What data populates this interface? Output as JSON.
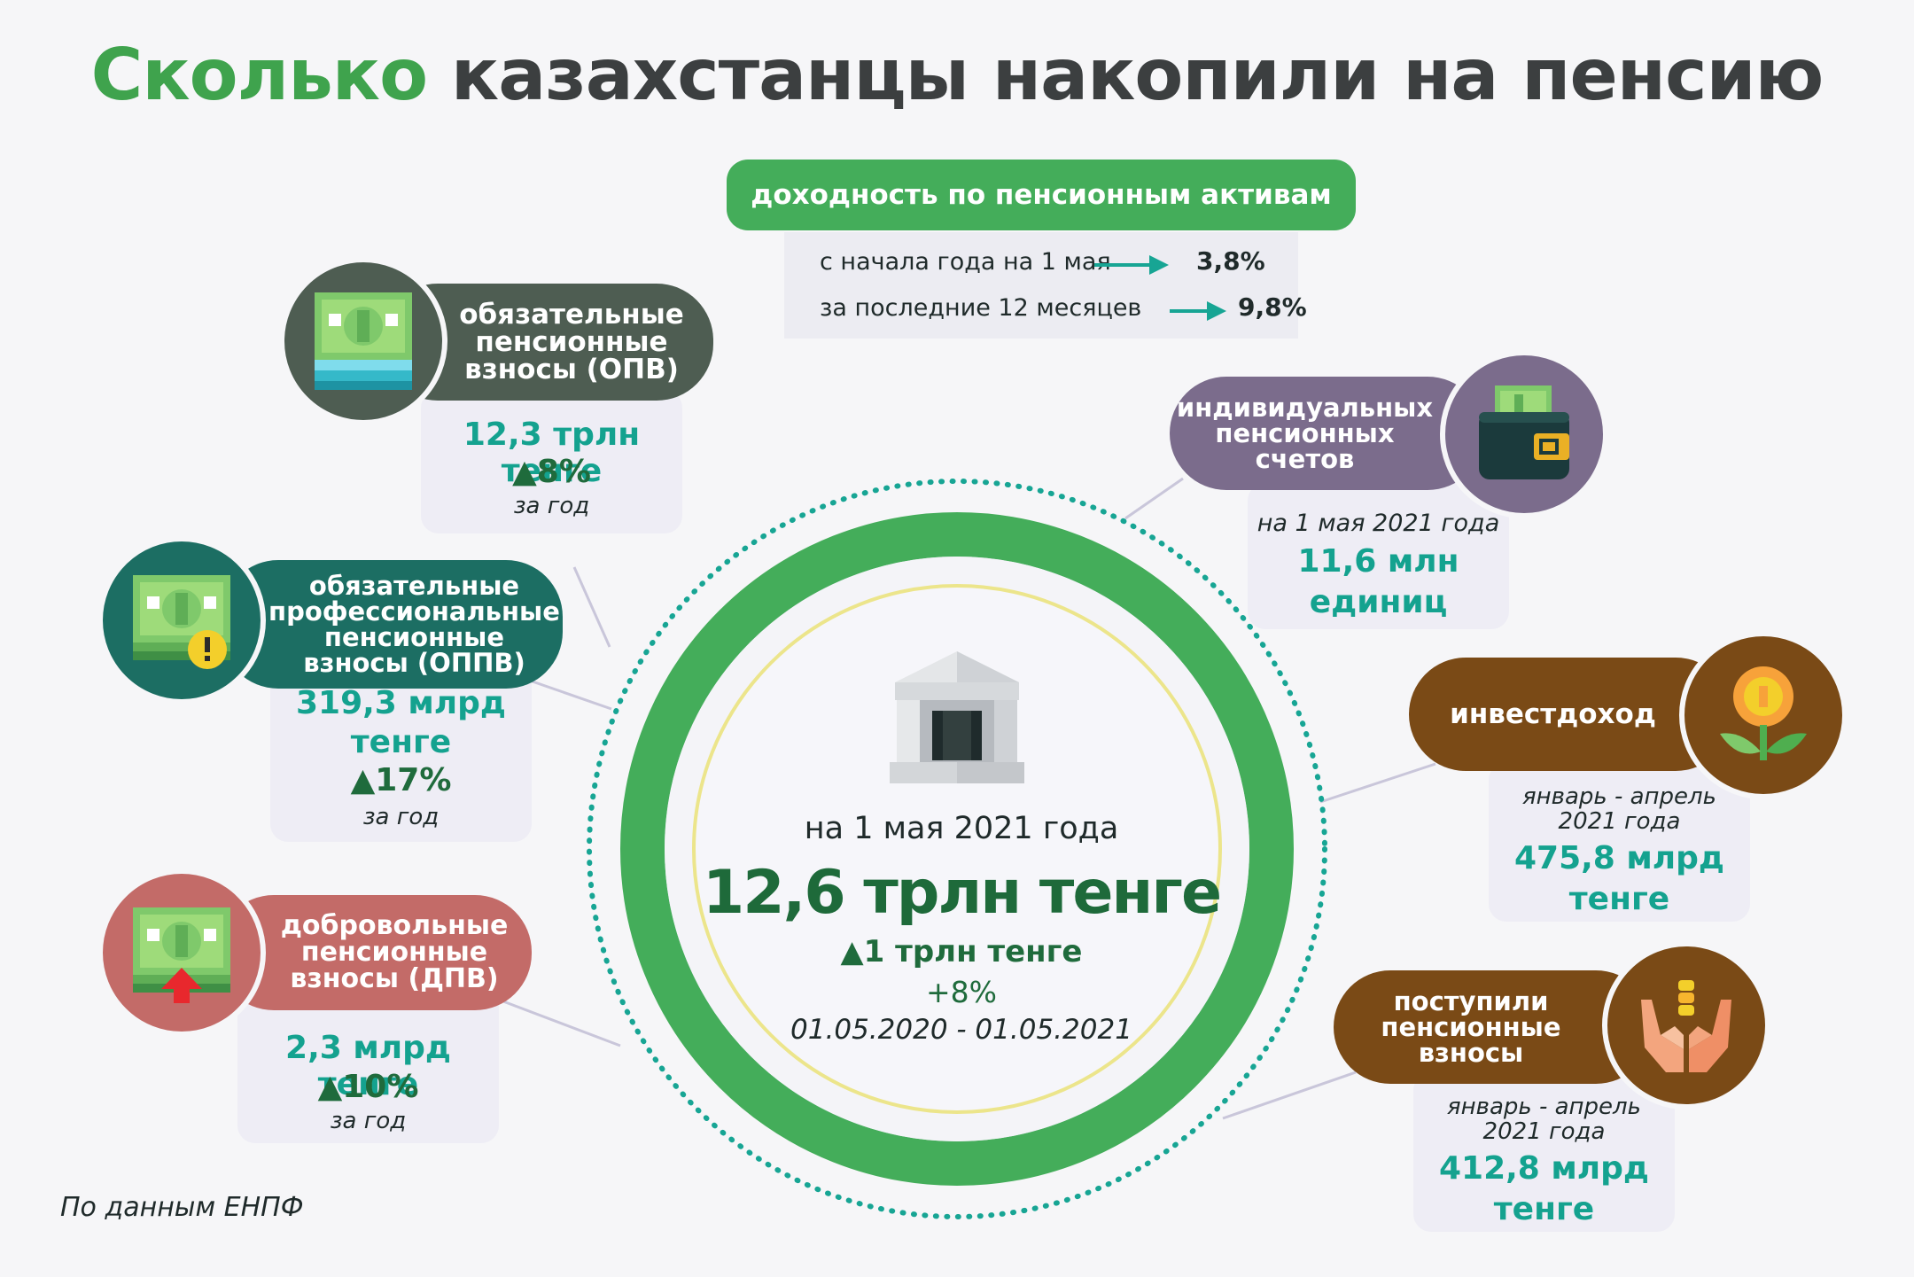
{
  "title": {
    "accent": "Сколько",
    "rest": "казахстанцы накопили на пенсию"
  },
  "yield": {
    "header": "доходность по пенсионным активам",
    "rows": [
      {
        "label": "с начала года на 1 мая",
        "value": "3,8%"
      },
      {
        "label": "за последние 12 месяцев",
        "value": "9,8%"
      }
    ]
  },
  "center": {
    "date": "на 1 мая 2021 года",
    "total": "12,6 трлн тенге",
    "growth": "▲1 трлн тенге",
    "growth_pct": "+8%",
    "period": "01.05.2020 - 01.05.2021"
  },
  "opv": {
    "label_lines": [
      "обязательные",
      "пенсионные",
      "взносы (ОПВ)"
    ],
    "value": "12,3 трлн тенге",
    "change": "▲8%",
    "note": "за год"
  },
  "oppv": {
    "label_lines": [
      "обязательные",
      "профессиональные",
      "пенсионные",
      "взносы (ОППВ)"
    ],
    "value_lines": [
      "319,3 млрд",
      "тенге"
    ],
    "change": "▲17%",
    "note": "за год"
  },
  "dpv": {
    "label_lines": [
      "добровольные",
      "пенсионные",
      "взносы (ДПВ)"
    ],
    "value": "2,3 млрд тенге",
    "change": "▲10%",
    "note": "за год"
  },
  "accounts": {
    "label_lines": [
      "индивидуальных",
      "пенсионных",
      "счетов"
    ],
    "note": "на 1 мая 2021 года",
    "value_lines": [
      "11,6 млн",
      "единиц"
    ]
  },
  "invest": {
    "label": "инвестдоход",
    "note_lines": [
      "январь - апрель",
      "2021 года"
    ],
    "value_lines": [
      "475,8 млрд",
      "тенге"
    ]
  },
  "contrib": {
    "label_lines": [
      "поступили",
      "пенсионные",
      "взносы"
    ],
    "note_lines": [
      "январь - апрель",
      "2021 года"
    ],
    "value_lines": [
      "412,8 млрд",
      "тенге"
    ]
  },
  "source": "По данным ЕНПФ",
  "colors": {
    "green": "#44ad5a",
    "dark_green_slate": "#4e5d52",
    "teal": "#1c6e63",
    "brick": "#c36b68",
    "purple": "#7b6c8c",
    "brown": "#7a4a16",
    "value_teal": "#14a28f"
  }
}
